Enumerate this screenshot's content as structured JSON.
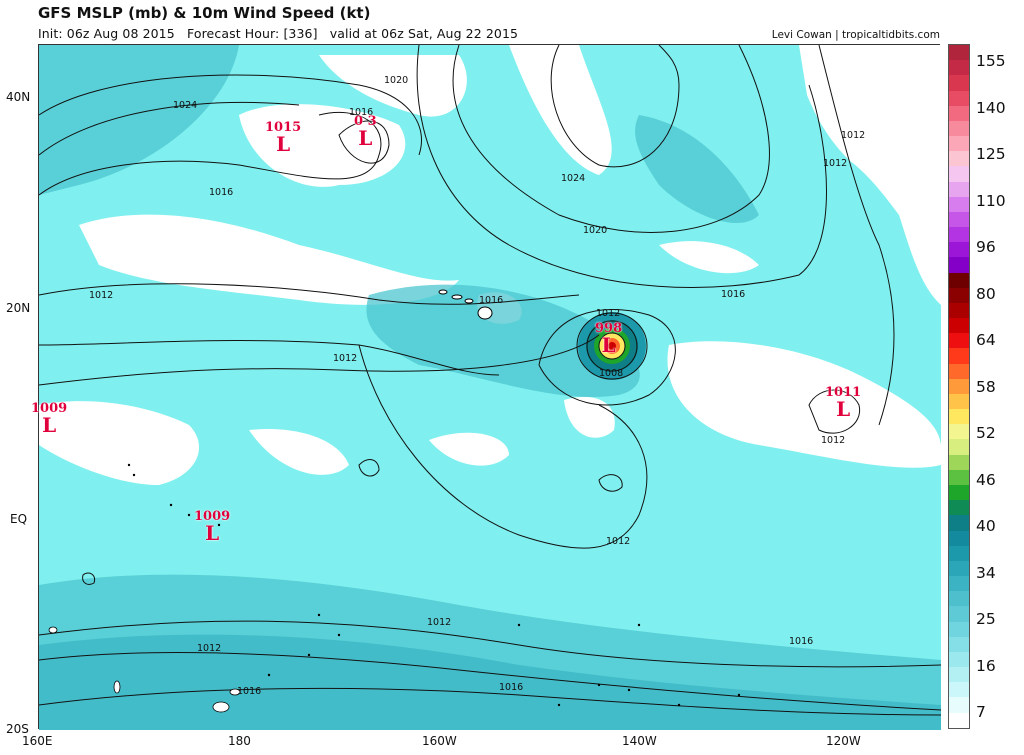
{
  "header": {
    "title": "GFS MSLP (mb) & 10m Wind Speed (kt)",
    "subtitle": "Init: 06z Aug 08 2015   Forecast Hour: [336]   valid at 06z Sat, Aug 22 2015",
    "credit": "Levi Cowan | tropicaltidbits.com"
  },
  "axes": {
    "lat_labels": [
      "40N",
      "20N",
      "EQ",
      "20S"
    ],
    "lon_labels": [
      "160E",
      "180",
      "160W",
      "140W",
      "120W"
    ]
  },
  "colorbar": {
    "ticks": [
      "155",
      "140",
      "125",
      "110",
      "96",
      "80",
      "64",
      "58",
      "52",
      "46",
      "40",
      "34",
      "25",
      "16",
      "7"
    ],
    "colors": [
      "#b0243c",
      "#c42a45",
      "#d93650",
      "#e84c64",
      "#f16a7f",
      "#f78a9c",
      "#fba7b7",
      "#fcc5d2",
      "#f4c6f0",
      "#e7a5ef",
      "#d87ded",
      "#c656e8",
      "#b234e2",
      "#9c16d8",
      "#8400c8",
      "#6e0000",
      "#8b0000",
      "#aa0000",
      "#cc0000",
      "#ee1010",
      "#ff3a1a",
      "#ff6a2a",
      "#ff9a3a",
      "#ffc34a",
      "#ffe760",
      "#f2f590",
      "#d8ef80",
      "#9ed65a",
      "#5cc040",
      "#1ea62a",
      "#0f8c55",
      "#0e7f86",
      "#148a9e",
      "#1d99ac",
      "#2aa6b8",
      "#3bb3c3",
      "#4dbfcd",
      "#5ecad6",
      "#70d5df",
      "#84dfe7",
      "#9be8ee",
      "#b3f0f4",
      "#ccf7fa",
      "#e6fcfd",
      "#ffffff"
    ]
  },
  "lows": [
    {
      "pressure": "1015",
      "symbol": "L"
    },
    {
      "pressure": "0 3",
      "symbol": "L"
    },
    {
      "pressure": "1009",
      "symbol": "L"
    },
    {
      "pressure": "998",
      "symbol": "L"
    },
    {
      "pressure": "1011",
      "symbol": "L"
    },
    {
      "pressure": "1009",
      "symbol": "L"
    }
  ],
  "isobar_labels": [
    "1020",
    "1024",
    "1016",
    "1016",
    "1024",
    "1020",
    "1016",
    "1012",
    "1016",
    "1012",
    "1012",
    "1008",
    "1012",
    "1012",
    "1012",
    "1012",
    "1016",
    "1012",
    "1016",
    "1016",
    "1012"
  ]
}
